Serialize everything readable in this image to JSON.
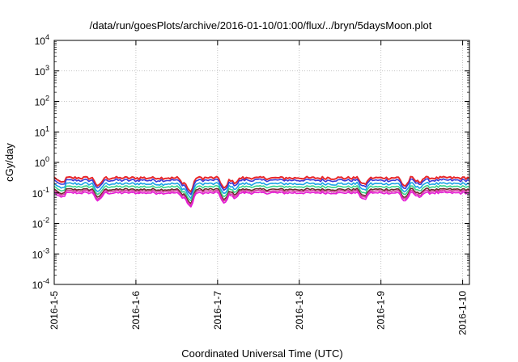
{
  "chart_data": {
    "type": "line",
    "title": "/data/run/goesPlots/archive/2016-01-10/01:00/flux/../bryn/5daysMoon.plot",
    "xlabel": "Coordinated Universal Time (UTC)",
    "ylabel": "cGy/day",
    "y_scale": "log",
    "ylim": [
      0.0001,
      10000
    ],
    "xlim": [
      "2016-01-05",
      "2016-01-10 02:00"
    ],
    "x_ticks": [
      "2016-1-5",
      "2016-1-6",
      "2016-1-7",
      "2016-1-8",
      "2016-1-9",
      "2016-1-10"
    ],
    "y_ticks": [
      {
        "base": "10",
        "exp": "-4"
      },
      {
        "base": "10",
        "exp": "-3"
      },
      {
        "base": "10",
        "exp": "-2"
      },
      {
        "base": "10",
        "exp": "-1"
      },
      {
        "base": "10",
        "exp": "0"
      },
      {
        "base": "10",
        "exp": "1"
      },
      {
        "base": "10",
        "exp": "2"
      },
      {
        "base": "10",
        "exp": "3"
      },
      {
        "base": "10",
        "exp": "4"
      }
    ],
    "grid": true,
    "series": [
      {
        "color": "#e8272a",
        "level": 0.31,
        "spread": 0.05
      },
      {
        "color": "#3a3ad6",
        "level": 0.26,
        "spread": 0.05
      },
      {
        "color": "#19a3e6",
        "level": 0.2,
        "spread": 0.05
      },
      {
        "color": "#39d48a",
        "level": 0.16,
        "spread": 0.04
      },
      {
        "color": "#6b2b2b",
        "level": 0.13,
        "spread": 0.04
      },
      {
        "color": "#d63aa3",
        "level": 0.115,
        "spread": 0.04
      },
      {
        "color": "#e61ad6",
        "level": 0.1,
        "spread": 0.04
      }
    ],
    "dips": [
      {
        "x": "2016-01-05 02:00",
        "factor": 0.7
      },
      {
        "x": "2016-01-05 13:00",
        "factor": 0.55
      },
      {
        "x": "2016-01-06 14:00",
        "factor": 0.7
      },
      {
        "x": "2016-01-06 16:00",
        "factor": 0.35
      },
      {
        "x": "2016-01-07 02:00",
        "factor": 0.45
      },
      {
        "x": "2016-01-07 05:00",
        "factor": 0.7
      },
      {
        "x": "2016-01-08 19:00",
        "factor": 0.6
      },
      {
        "x": "2016-01-09 07:00",
        "factor": 0.55
      },
      {
        "x": "2016-01-09 11:00",
        "factor": 0.75
      }
    ]
  }
}
